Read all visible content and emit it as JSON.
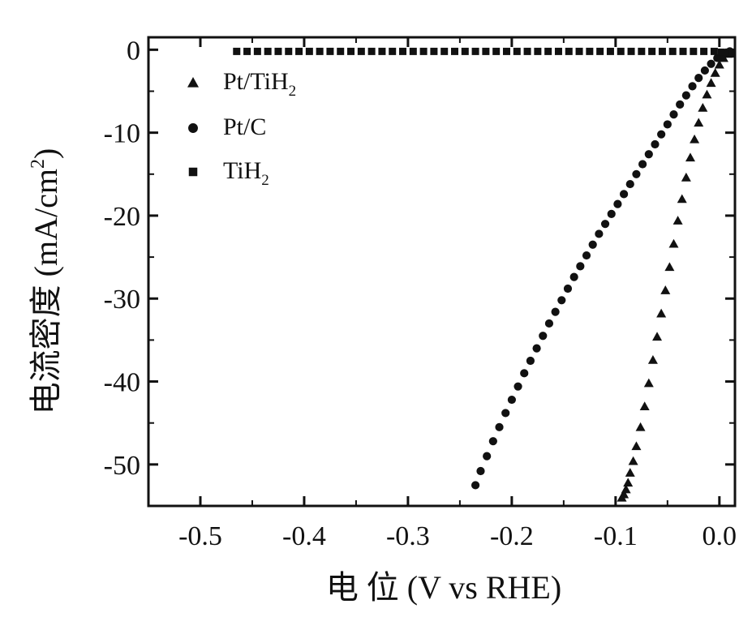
{
  "chart_data": {
    "type": "scatter",
    "title": "",
    "xlabel": "电 位 (V vs RHE)",
    "ylabel": "电流密度 (mA/cm²)",
    "ylabel_parts": {
      "main": "电流密度 (mA/cm",
      "sup": "2",
      "end": ")"
    },
    "xlim": [
      -0.55,
      0.015
    ],
    "ylim": [
      -55,
      1.5
    ],
    "xticks": [
      -0.5,
      -0.4,
      -0.3,
      -0.2,
      -0.1,
      0.0
    ],
    "xtick_labels": [
      "-0.5",
      "-0.4",
      "-0.3",
      "-0.2",
      "-0.1",
      "0.0"
    ],
    "yticks": [
      0,
      -10,
      -20,
      -30,
      -40,
      -50
    ],
    "ytick_labels": [
      "0",
      "-10",
      "-20",
      "-30",
      "-40",
      "-50"
    ],
    "grid": false,
    "legend_position": "top-left",
    "series": [
      {
        "name": "Pt/TiH₂",
        "label_main": "Pt/TiH",
        "label_sub": "2",
        "marker": "triangle",
        "color": "#111111",
        "x": [
          0.008,
          0.004,
          0.0,
          -0.004,
          -0.008,
          -0.012,
          -0.016,
          -0.02,
          -0.024,
          -0.028,
          -0.032,
          -0.036,
          -0.04,
          -0.044,
          -0.048,
          -0.052,
          -0.056,
          -0.06,
          -0.064,
          -0.068,
          -0.072,
          -0.076,
          -0.08,
          -0.083,
          -0.086,
          -0.088,
          -0.09,
          -0.092,
          -0.094
        ],
        "y": [
          -0.5,
          -1.0,
          -1.8,
          -2.8,
          -4.0,
          -5.4,
          -7.0,
          -8.8,
          -10.8,
          -13.0,
          -15.4,
          -18.0,
          -20.6,
          -23.4,
          -26.2,
          -29.0,
          -31.8,
          -34.6,
          -37.4,
          -40.2,
          -43.0,
          -45.5,
          -47.8,
          -49.6,
          -51.0,
          -52.2,
          -53.0,
          -53.6,
          -54.0
        ]
      },
      {
        "name": "Pt/C",
        "label_main": "Pt/C",
        "label_sub": "",
        "marker": "circle",
        "color": "#111111",
        "x": [
          0.01,
          0.004,
          -0.002,
          -0.008,
          -0.014,
          -0.02,
          -0.026,
          -0.032,
          -0.038,
          -0.044,
          -0.05,
          -0.056,
          -0.062,
          -0.068,
          -0.074,
          -0.08,
          -0.086,
          -0.092,
          -0.098,
          -0.104,
          -0.11,
          -0.116,
          -0.122,
          -0.128,
          -0.134,
          -0.14,
          -0.146,
          -0.152,
          -0.158,
          -0.164,
          -0.17,
          -0.176,
          -0.182,
          -0.188,
          -0.194,
          -0.2,
          -0.206,
          -0.212,
          -0.218,
          -0.224,
          -0.23,
          -0.235
        ],
        "y": [
          -0.2,
          -0.5,
          -1.0,
          -1.7,
          -2.5,
          -3.4,
          -4.4,
          -5.5,
          -6.6,
          -7.8,
          -9.0,
          -10.2,
          -11.4,
          -12.6,
          -13.8,
          -15.0,
          -16.2,
          -17.4,
          -18.6,
          -19.8,
          -21.0,
          -22.2,
          -23.5,
          -24.8,
          -26.1,
          -27.4,
          -28.8,
          -30.2,
          -31.6,
          -33.0,
          -34.5,
          -36.0,
          -37.5,
          -39.0,
          -40.6,
          -42.2,
          -43.8,
          -45.5,
          -47.2,
          -49.0,
          -50.8,
          -52.5
        ]
      },
      {
        "name": "TiH₂",
        "label_main": "TiH",
        "label_sub": "2",
        "marker": "square",
        "color": "#111111",
        "x": [
          -0.465,
          -0.455,
          -0.445,
          -0.435,
          -0.425,
          -0.415,
          -0.405,
          -0.395,
          -0.385,
          -0.375,
          -0.365,
          -0.355,
          -0.345,
          -0.335,
          -0.325,
          -0.315,
          -0.305,
          -0.295,
          -0.285,
          -0.275,
          -0.265,
          -0.255,
          -0.245,
          -0.235,
          -0.225,
          -0.215,
          -0.205,
          -0.195,
          -0.185,
          -0.175,
          -0.165,
          -0.155,
          -0.145,
          -0.135,
          -0.125,
          -0.115,
          -0.105,
          -0.095,
          -0.085,
          -0.075,
          -0.065,
          -0.055,
          -0.045,
          -0.035,
          -0.025,
          -0.015,
          -0.005,
          0.002,
          0.008,
          0.012
        ],
        "y": [
          -0.2,
          -0.2,
          -0.2,
          -0.2,
          -0.2,
          -0.2,
          -0.2,
          -0.2,
          -0.2,
          -0.2,
          -0.2,
          -0.2,
          -0.2,
          -0.2,
          -0.2,
          -0.2,
          -0.2,
          -0.2,
          -0.2,
          -0.2,
          -0.2,
          -0.2,
          -0.2,
          -0.2,
          -0.2,
          -0.2,
          -0.2,
          -0.2,
          -0.2,
          -0.2,
          -0.2,
          -0.2,
          -0.2,
          -0.2,
          -0.2,
          -0.2,
          -0.2,
          -0.2,
          -0.2,
          -0.2,
          -0.2,
          -0.2,
          -0.2,
          -0.2,
          -0.2,
          -0.2,
          -0.2,
          -0.3,
          -0.4,
          -0.5
        ]
      }
    ]
  }
}
